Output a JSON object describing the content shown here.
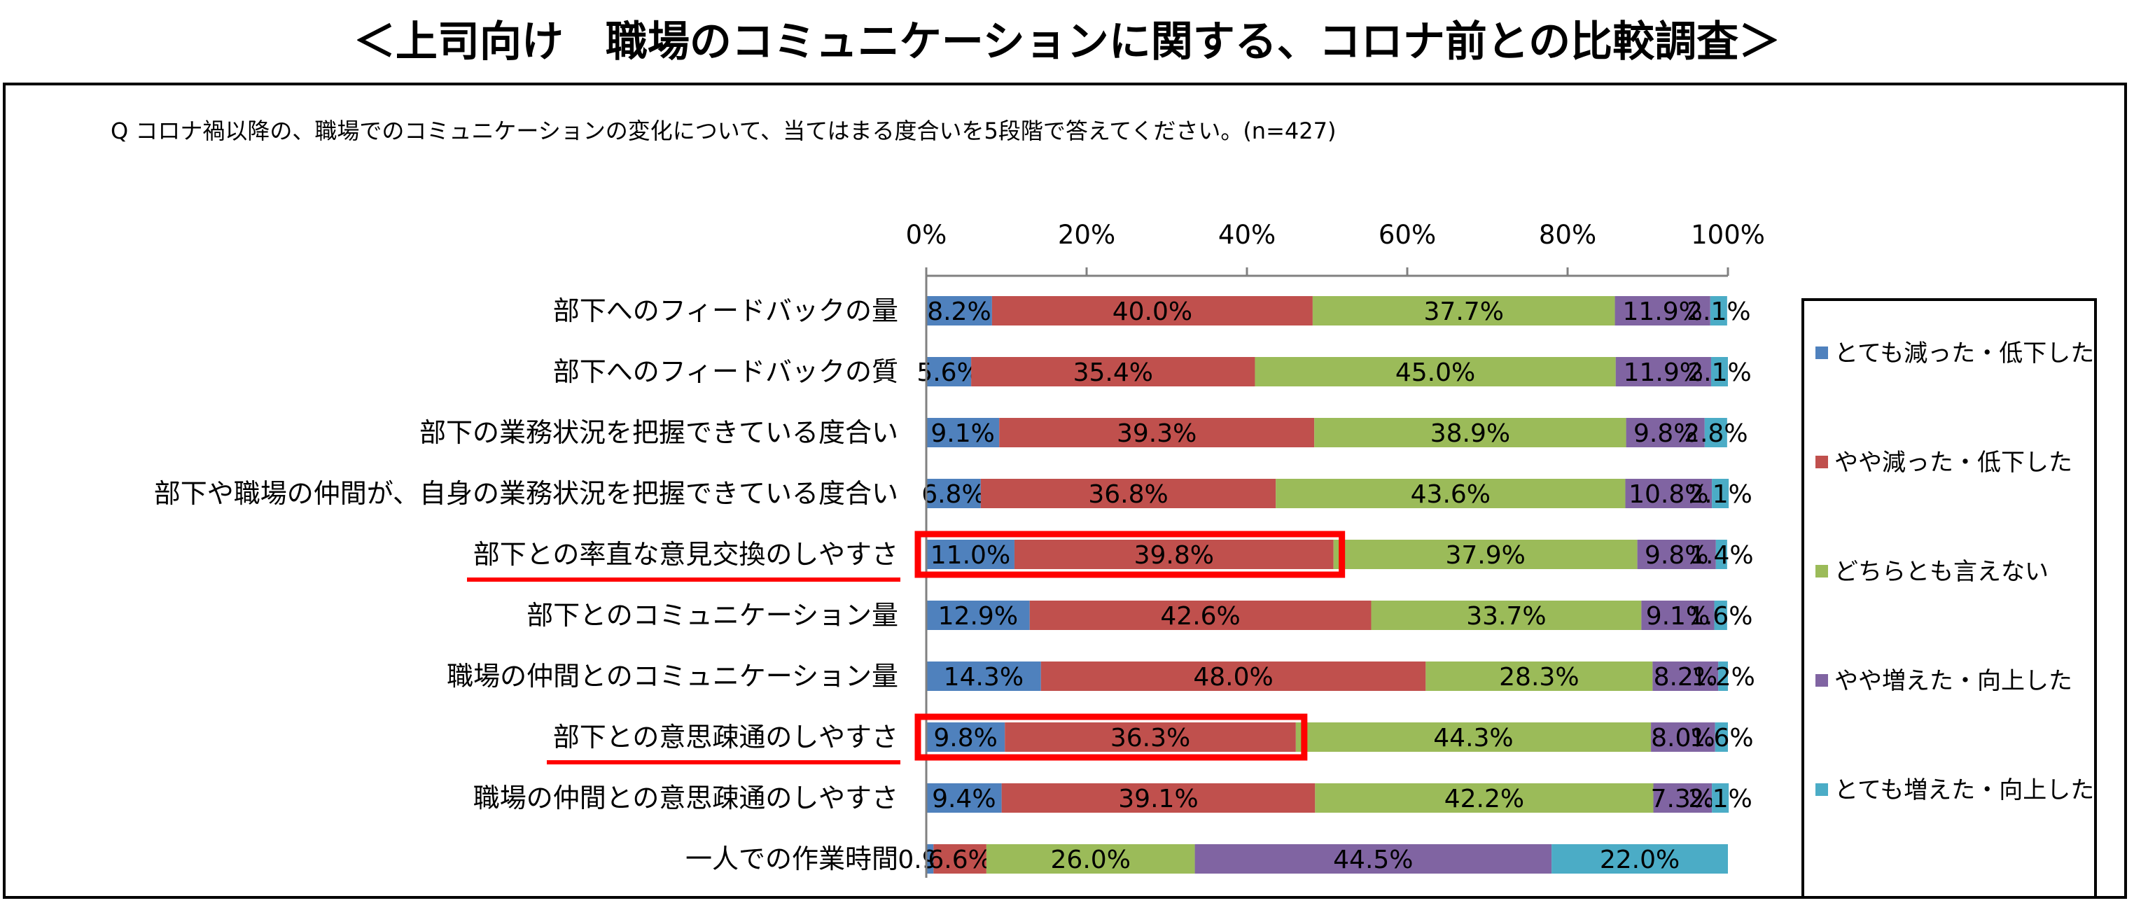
{
  "title": "＜上司向け　職場のコミュニケーションに関する、コロナ前との比較調査＞",
  "chart_data": {
    "type": "bar",
    "orientation": "horizontal",
    "stacked": "percent",
    "question": "Q コロナ禍以降の、職場でのコミュニケーションの変化について、当てはまる度合いを5段階で答えてください。(n=427)",
    "x_ticks": [
      "0%",
      "20%",
      "40%",
      "60%",
      "80%",
      "100%"
    ],
    "xlim": [
      0,
      100
    ],
    "legend_position": "right",
    "categories": [
      "部下へのフィードバックの量",
      "部下へのフィードバックの質",
      "部下の業務状況を把握できている度合い",
      "部下や職場の仲間が、自身の業務状況を把握できている度合い",
      "部下との率直な意見交換のしやすさ",
      "部下とのコミュニケーション量",
      "職場の仲間とのコミュニケーション量",
      "部下との意思疎通のしやすさ",
      "職場の仲間との意思疎通のしやすさ",
      "一人での作業時間"
    ],
    "series": [
      {
        "name": "とても減った・低下した",
        "color": "#4F81BD",
        "values": [
          8.2,
          5.6,
          9.1,
          6.8,
          11.0,
          12.9,
          14.3,
          9.8,
          9.4,
          0.9
        ],
        "labels": [
          "8.2%",
          "5.6%",
          "9.1%",
          "6.8%",
          "11.0%",
          "12.9%",
          "14.3%",
          "9.8%",
          "9.4%",
          "0.9%"
        ]
      },
      {
        "name": "やや減った・低下した",
        "color": "#C0504D",
        "values": [
          40.0,
          35.4,
          39.3,
          36.8,
          39.8,
          42.6,
          48.0,
          36.3,
          39.1,
          6.6
        ],
        "labels": [
          "40.0%",
          "35.4%",
          "39.3%",
          "36.8%",
          "39.8%",
          "42.6%",
          "48.0%",
          "36.3%",
          "39.1%",
          "6.6%"
        ]
      },
      {
        "name": "どちらとも言えない",
        "color": "#9BBB59",
        "values": [
          37.7,
          45.0,
          38.9,
          43.6,
          37.9,
          33.7,
          28.3,
          44.3,
          42.2,
          26.0
        ],
        "labels": [
          "37.7%",
          "45.0%",
          "38.9%",
          "43.6%",
          "37.9%",
          "33.7%",
          "28.3%",
          "44.3%",
          "42.2%",
          "26.0%"
        ]
      },
      {
        "name": "やや増えた・向上した",
        "color": "#8064A2",
        "values": [
          11.9,
          11.9,
          9.8,
          10.8,
          9.8,
          9.1,
          8.2,
          8.0,
          7.3,
          44.5
        ],
        "labels": [
          "11.9%",
          "11.9%",
          "9.8%",
          "10.8%",
          "9.8%",
          "9.1%",
          "8.2%",
          "8.0%",
          "7.3%",
          "44.5%"
        ]
      },
      {
        "name": "とても増えた・向上した",
        "color": "#4BACC6",
        "values": [
          2.1,
          2.1,
          2.8,
          2.1,
          1.4,
          1.6,
          1.2,
          1.6,
          2.1,
          22.0
        ],
        "labels": [
          "2.1%",
          "2.1%",
          "2.8%",
          "2.1%",
          "1.4%",
          "1.6%",
          "1.2%",
          "1.6%",
          "2.1%",
          "22.0%"
        ]
      }
    ],
    "highlighted_categories": [
      4,
      7
    ],
    "highlight_color": "#FF0000"
  }
}
